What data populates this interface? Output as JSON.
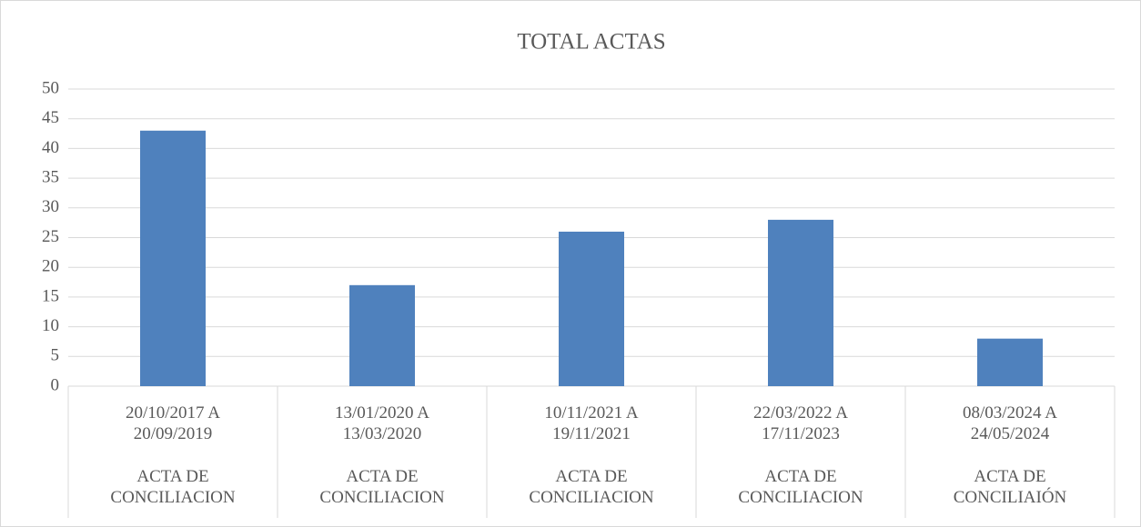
{
  "chart_data": {
    "type": "bar",
    "title": "TOTAL ACTAS",
    "categories": [
      "20/10/2017 A 20/09/2019",
      "13/01/2020 A 13/03/2020",
      "10/11/2021 A 19/11/2021",
      "22/03/2022 A 17/11/2023",
      "08/03/2024 A 24/05/2024"
    ],
    "group_labels": [
      "ACTA DE CONCILIACION",
      "ACTA DE CONCILIACION",
      "ACTA DE CONCILIACION",
      "ACTA DE CONCILIACION",
      "ACTA DE CONCILIAIÓN"
    ],
    "values": [
      43,
      17,
      26,
      28,
      8
    ],
    "color": "#4f81bd",
    "ylim": [
      0,
      50
    ],
    "yticks": [
      0,
      5,
      10,
      15,
      20,
      25,
      30,
      35,
      40,
      45,
      50
    ],
    "grid": true
  }
}
